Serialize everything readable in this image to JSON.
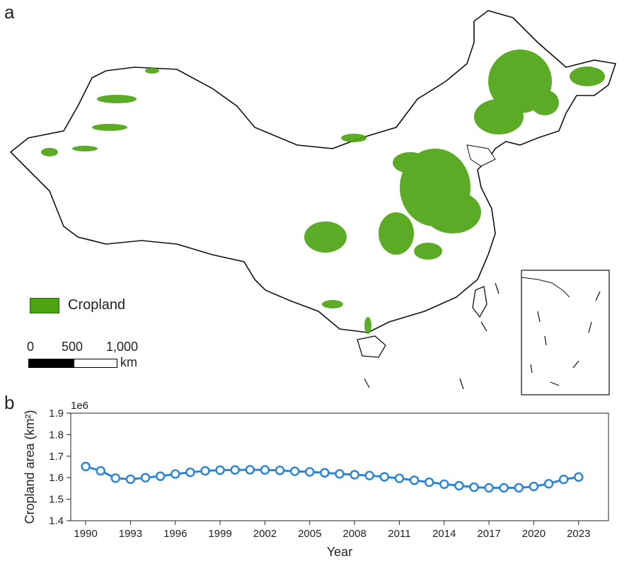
{
  "panels": {
    "a_label": "a",
    "b_label": "b"
  },
  "map": {
    "legend": {
      "label": "Cropland",
      "color": "#4aa30f"
    },
    "scale_bar": {
      "ticks": [
        "0",
        "500",
        "1,000"
      ],
      "unit": "km"
    },
    "boundary_color": "#111111"
  },
  "chart_data": {
    "type": "line",
    "title": "",
    "xlabel": "Year",
    "ylabel": "Cropland area (km²)",
    "y_multiplier_label": "1e6",
    "x": [
      1990,
      1991,
      1992,
      1993,
      1994,
      1995,
      1996,
      1997,
      1998,
      1999,
      2000,
      2001,
      2002,
      2003,
      2004,
      2005,
      2006,
      2007,
      2008,
      2009,
      2010,
      2011,
      2012,
      2013,
      2014,
      2015,
      2016,
      2017,
      2018,
      2019,
      2020,
      2021,
      2022,
      2023
    ],
    "series": [
      {
        "values": [
          1.652,
          1.632,
          1.598,
          1.593,
          1.6,
          1.607,
          1.617,
          1.625,
          1.632,
          1.635,
          1.636,
          1.637,
          1.636,
          1.634,
          1.63,
          1.627,
          1.623,
          1.618,
          1.614,
          1.61,
          1.604,
          1.597,
          1.588,
          1.579,
          1.57,
          1.563,
          1.556,
          1.553,
          1.553,
          1.553,
          1.559,
          1.572,
          1.592,
          1.603
        ],
        "color": "#2f86d0",
        "marker": "circle"
      }
    ],
    "x_ticks": [
      "1990",
      "1993",
      "1996",
      "1999",
      "2002",
      "2005",
      "2008",
      "2011",
      "2014",
      "2017",
      "2020",
      "2023"
    ],
    "y_ticks": [
      "1.4",
      "1.5",
      "1.6",
      "1.7",
      "1.8",
      "1.9"
    ],
    "xlim": [
      1989,
      2025
    ],
    "ylim": [
      1.4,
      1.9
    ],
    "grid": false,
    "legend": "none"
  }
}
